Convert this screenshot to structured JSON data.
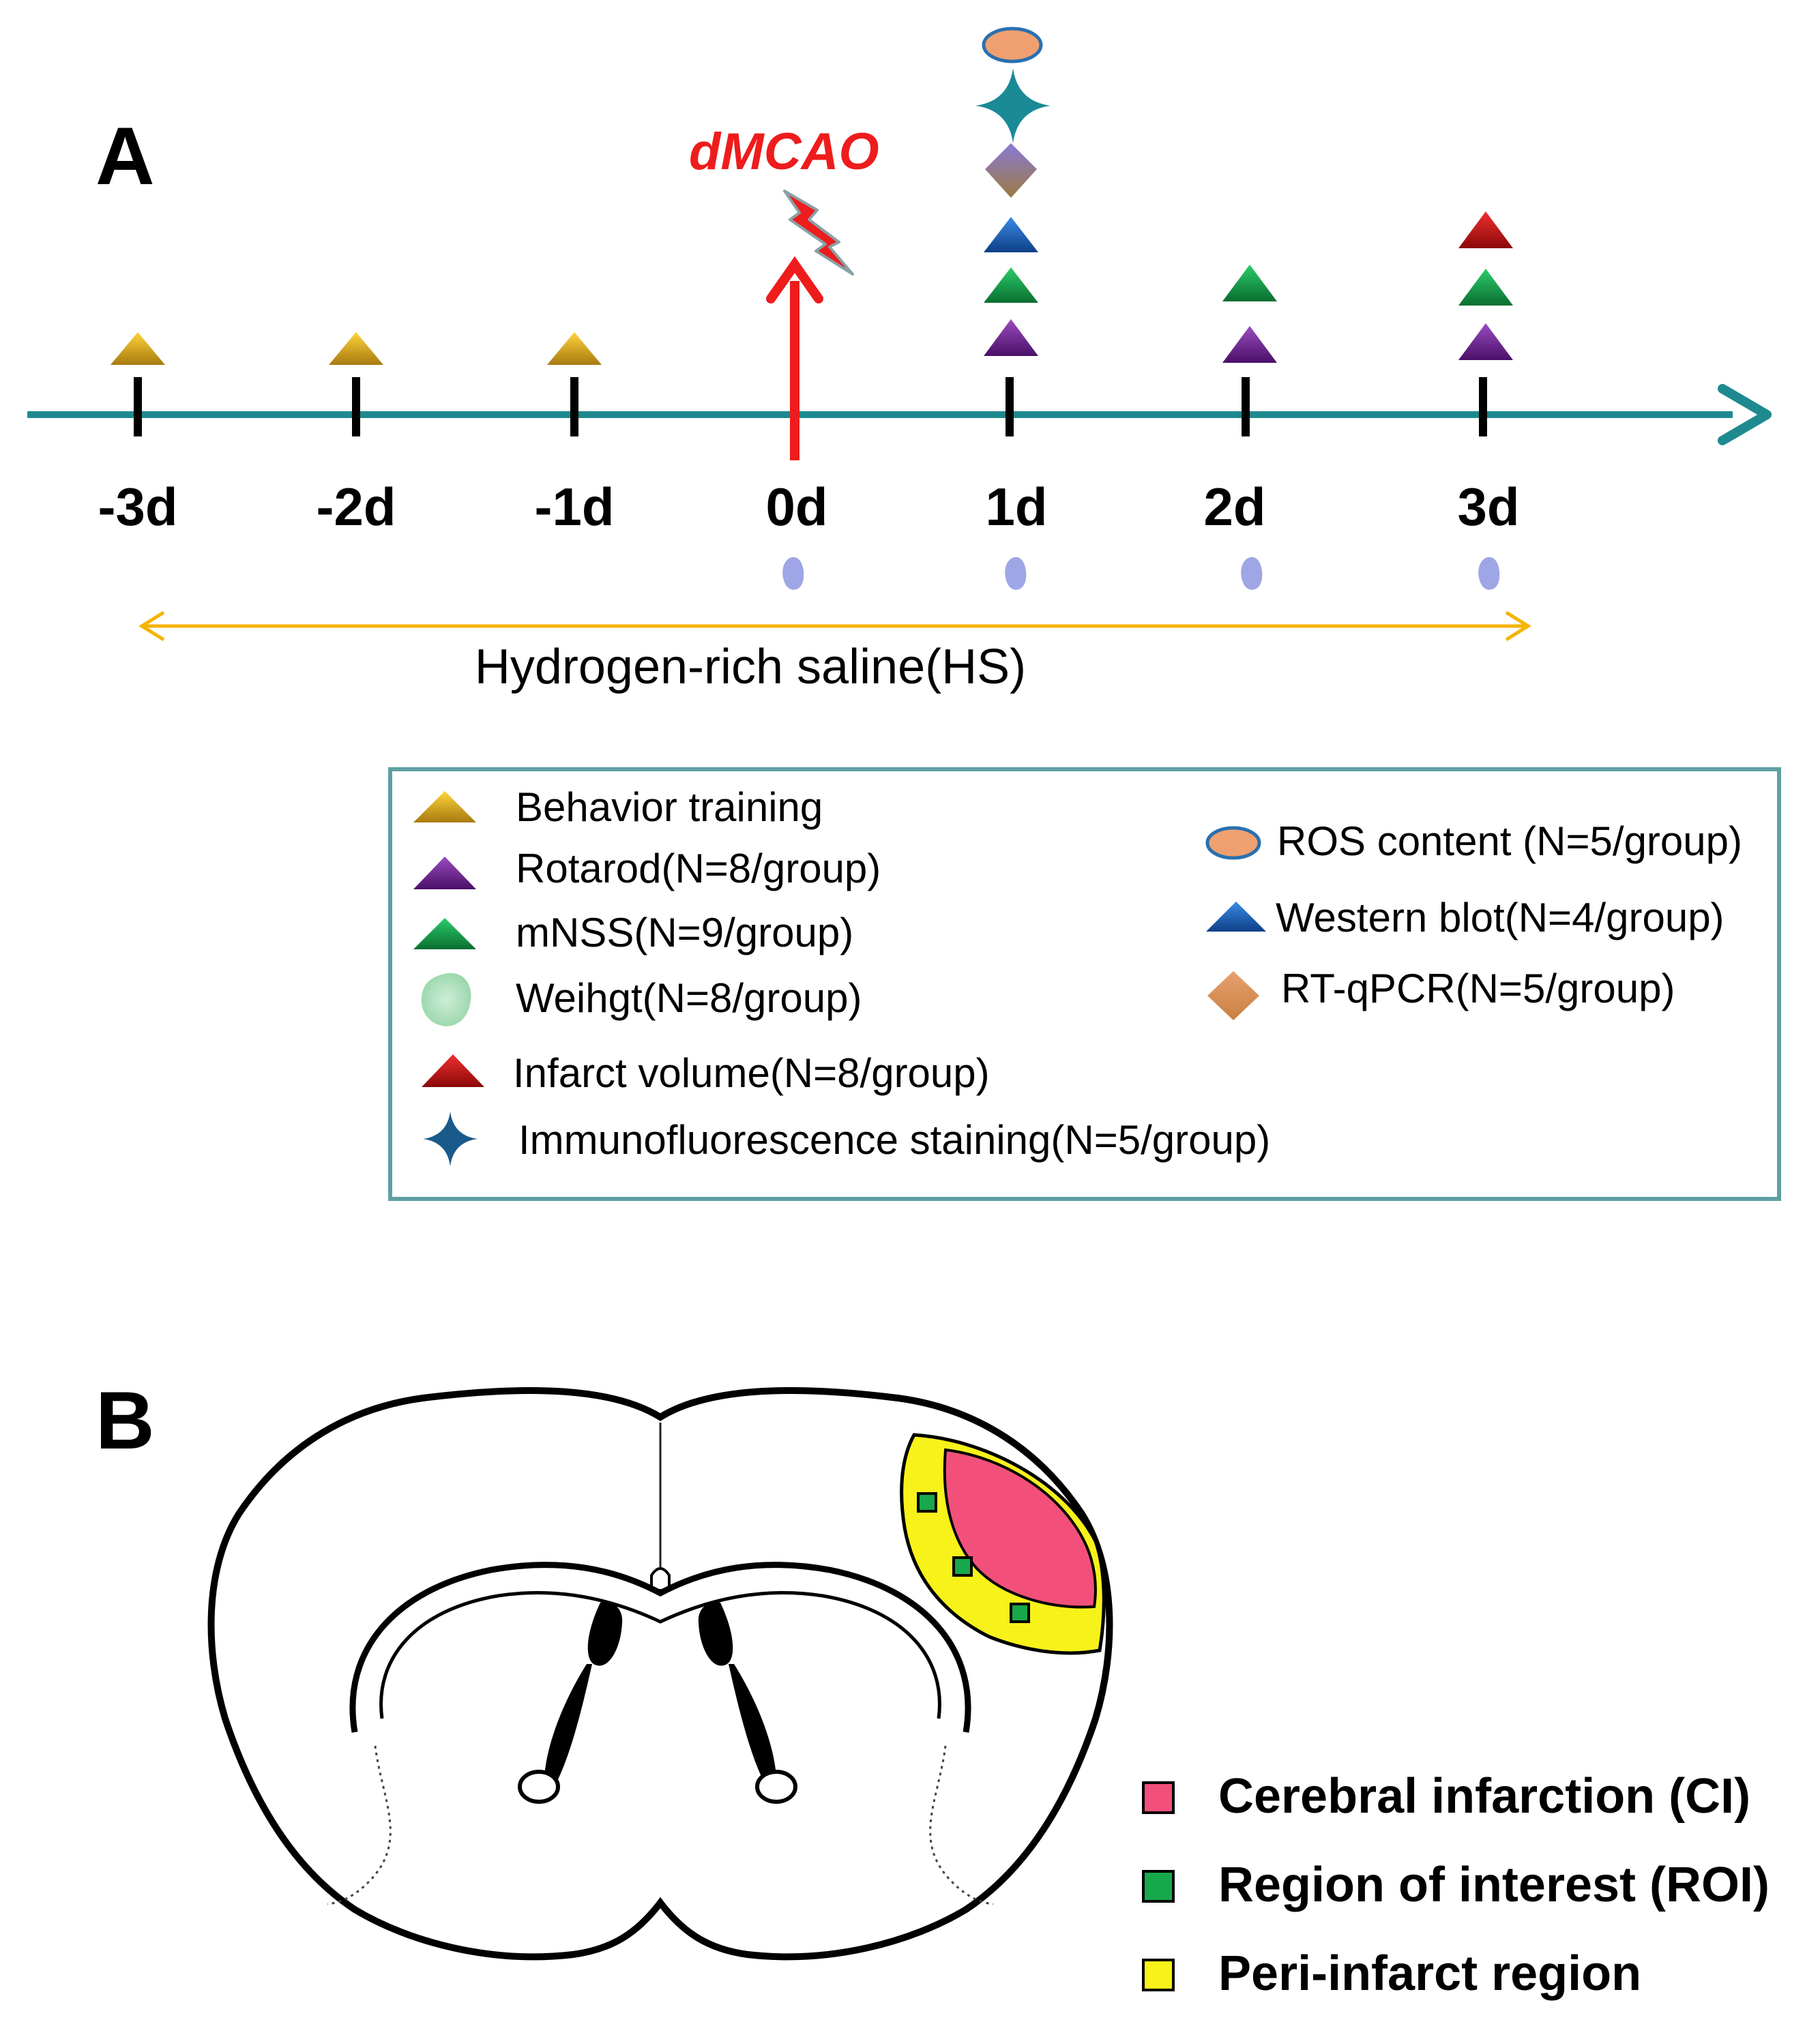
{
  "panelA": {
    "label": "A",
    "event": "dMCAO",
    "days": [
      "-3d",
      "-2d",
      "-1d",
      "0d",
      "1d",
      "2d",
      "3d"
    ],
    "hs_label": "Hydrogen-rich saline(HS)",
    "legend": {
      "behavior": "Behavior training",
      "rotarod": "Rotarod(N=8/group)",
      "mnss": "mNSS(N=9/group)",
      "weight": "Weihgt(N=8/group)",
      "infarct": "Infarct volume(N=8/group)",
      "if": "Immunofluorescence staining(N=5/group)",
      "ros": "ROS content (N=5/group)",
      "wb": "Western blot(N=4/group)",
      "rtq": "RT-qPCR(N=5/group)"
    }
  },
  "panelB": {
    "label": "B",
    "legend": {
      "ci": "Cerebral infarction (CI)",
      "roi": "Region of interest (ROI)",
      "peri": "Peri-infarct region"
    }
  },
  "colors": {
    "axis": "#1e8a8f",
    "event": "#ee1c1c",
    "yellow": "#f0b818",
    "purple": "#7a2a9a",
    "green": "#16a650",
    "blue": "#1a64c0",
    "red": "#d41414",
    "salmon": "#f0a070",
    "weight_drop": "#9fa6e6",
    "legend_border": "#5fa0a2",
    "hs_arrow": "#f4b400",
    "infarct": "#f2507a",
    "peri": "#f7f21a",
    "roi": "#17a84c"
  }
}
